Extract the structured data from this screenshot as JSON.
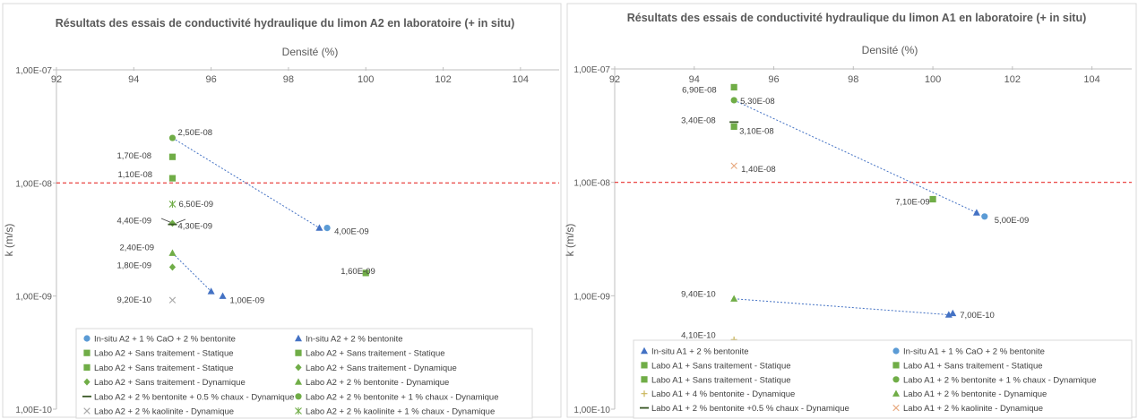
{
  "chart_data": [
    {
      "type": "scatter",
      "title": "Résultats des essais de conductivité hydraulique du limon A2 en laboratoire (+ in situ)",
      "xlabel": "Densité (%)",
      "ylabel": "k (m/s)",
      "xlim": [
        92,
        105
      ],
      "xticks": [
        "92",
        "94",
        "96",
        "98",
        "100",
        "102",
        "104"
      ],
      "ylim": [
        1e-10,
        1e-07
      ],
      "yscale": "log",
      "yticks": [
        "1,00E-07",
        "1,00E-08",
        "1,00E-09",
        "1,00E-10"
      ],
      "threshold": 1e-08,
      "legend_position": "bottom",
      "series": [
        {
          "name": "In-situ A2 + 1 % CaO + 2 % bentonite",
          "marker": "circle",
          "color": "#5b9bd5",
          "points": [
            {
              "x": 99.0,
              "y": 4e-09,
              "label": "4,00E-09"
            }
          ]
        },
        {
          "name": "In-situ A2 + 2 % bentonite",
          "marker": "triangle",
          "color": "#4472c4",
          "points": [
            {
              "x": 98.8,
              "y": 4e-09,
              "label": ""
            },
            {
              "x": 96.0,
              "y": 1.1e-09,
              "label": ""
            },
            {
              "x": 96.3,
              "y": 1e-09,
              "label": "1,00E-09"
            }
          ]
        },
        {
          "name": "Labo A2 + Sans traitement - Statique",
          "marker": "square",
          "color": "#70ad47",
          "points": [
            {
              "x": 100.0,
              "y": 1.6e-09,
              "label": "1,60E-09"
            }
          ]
        },
        {
          "name": "Labo A2 + Sans traitement - Statique",
          "marker": "square",
          "color": "#70ad47",
          "points": [
            {
              "x": 95.0,
              "y": 1.7e-08,
              "label": "1,70E-08"
            }
          ]
        },
        {
          "name": "Labo A2 + Sans traitement - Statique",
          "marker": "square",
          "color": "#70ad47",
          "points": [
            {
              "x": 95.0,
              "y": 1.1e-08,
              "label": "1,10E-08"
            }
          ]
        },
        {
          "name": "Labo A2 + Sans traitement - Dynamique",
          "marker": "diamond",
          "color": "#70ad47",
          "points": [
            {
              "x": 95.0,
              "y": 4.4e-09,
              "label": "4,40E-09"
            }
          ]
        },
        {
          "name": "Labo A2 + Sans traitement - Dynamique",
          "marker": "diamond",
          "color": "#70ad47",
          "points": [
            {
              "x": 95.0,
              "y": 1.8e-09,
              "label": "1,80E-09"
            }
          ]
        },
        {
          "name": "Labo A2 + 2 % bentonite - Dynamique",
          "marker": "triangle",
          "color": "#70ad47",
          "points": [
            {
              "x": 95.0,
              "y": 2.4e-09,
              "label": "2,40E-09"
            }
          ]
        },
        {
          "name": "Labo A2 + 2 % bentonite + 0.5 % chaux  - Dynamique",
          "marker": "dash",
          "color": "#375623",
          "points": [
            {
              "x": 95.0,
              "y": 4.3e-09,
              "label": "4,30E-09"
            }
          ]
        },
        {
          "name": "Labo A2 + 2 % bentonite + 1 % chaux  - Dynamique",
          "marker": "circle",
          "color": "#70ad47",
          "points": [
            {
              "x": 95.0,
              "y": 2.5e-08,
              "label": "2,50E-08"
            }
          ]
        },
        {
          "name": "Labo A2 + 2 % kaolinite - Dynamique",
          "marker": "x",
          "color": "#a9a9a9",
          "points": [
            {
              "x": 95.0,
              "y": 9.2e-10,
              "label": "9,20E-10"
            }
          ]
        },
        {
          "name": "Labo A2 + 2 % kaolinite + 1 % chaux - Dynamique",
          "marker": "xstar",
          "color": "#70ad47",
          "points": [
            {
              "x": 95.0,
              "y": 6.5e-09,
              "label": "6,50E-09"
            }
          ]
        }
      ],
      "trendlines": [
        {
          "from": {
            "x": 95.0,
            "y": 2.5e-08
          },
          "to": {
            "x": 98.8,
            "y": 4e-09
          }
        },
        {
          "from": {
            "x": 95.0,
            "y": 2.4e-09
          },
          "to": {
            "x": 96.0,
            "y": 1.1e-09
          }
        }
      ]
    },
    {
      "type": "scatter",
      "title": "Résultats des essais de conductivité hydraulique du limon A1 en laboratoire (+ in situ)",
      "xlabel": "Densité (%)",
      "ylabel": "k (m/s)",
      "xlim": [
        92,
        105
      ],
      "xticks": [
        "92",
        "94",
        "96",
        "98",
        "100",
        "102",
        "104"
      ],
      "ylim": [
        1e-10,
        1e-07
      ],
      "yscale": "log",
      "yticks": [
        "1,00E-07",
        "1,00E-08",
        "1,00E-09",
        "1,00E-10"
      ],
      "threshold": 1e-08,
      "legend_position": "bottom",
      "series": [
        {
          "name": "In-situ A1 + 2 % bentonite",
          "marker": "triangle",
          "color": "#4472c4",
          "points": [
            {
              "x": 101.1,
              "y": 5.4e-09,
              "label": ""
            },
            {
              "x": 100.4,
              "y": 6.8e-10,
              "label": ""
            },
            {
              "x": 100.5,
              "y": 7e-10,
              "label": "7,00E-10"
            }
          ]
        },
        {
          "name": "In-situ A1 + 1 % CaO + 2 % bentonite",
          "marker": "circle",
          "color": "#5b9bd5",
          "points": [
            {
              "x": 101.3,
              "y": 5e-09,
              "label": "5,00E-09"
            }
          ]
        },
        {
          "name": "Labo A1 + Sans traitement - Statique",
          "marker": "square",
          "color": "#70ad47",
          "points": [
            {
              "x": 95.0,
              "y": 6.9e-08,
              "label": "6,90E-08"
            }
          ]
        },
        {
          "name": "Labo A1 + Sans traitement - Statique",
          "marker": "square",
          "color": "#70ad47",
          "points": [
            {
              "x": 95.0,
              "y": 3.1e-08,
              "label": "3,10E-08"
            }
          ]
        },
        {
          "name": "Labo A1 + Sans traitement - Statique",
          "marker": "square",
          "color": "#70ad47",
          "points": [
            {
              "x": 100.0,
              "y": 7.1e-09,
              "label": "7,10E-09"
            }
          ]
        },
        {
          "name": "Labo A1 + 2 % bentonite - Dynamique",
          "marker": "triangle",
          "color": "#70ad47",
          "points": [
            {
              "x": 95.0,
              "y": 9.4e-10,
              "label": "9,40E-10"
            }
          ]
        },
        {
          "name": "Labo A1 + 4 % bentonite - Dynamique",
          "marker": "plus",
          "color": "#c9b458",
          "points": [
            {
              "x": 95.0,
              "y": 4.1e-10,
              "label": "4,10E-10"
            }
          ]
        },
        {
          "name": "Labo A1 + 2 % bentonite + 1 % chaux  - Dynamique",
          "marker": "circle",
          "color": "#70ad47",
          "points": [
            {
              "x": 95.0,
              "y": 5.3e-08,
              "label": "5,30E-08"
            }
          ]
        },
        {
          "name": "Labo A1 + 2 % bentonite +0.5 % chaux  - Dynamique",
          "marker": "dash",
          "color": "#375623",
          "points": [
            {
              "x": 95.0,
              "y": 3.4e-08,
              "label": "3,40E-08"
            }
          ]
        },
        {
          "name": "Labo A1 + 2 % kaolinite - Dynamique",
          "marker": "x",
          "color": "#e7a77c",
          "points": [
            {
              "x": 95.0,
              "y": 1.4e-08,
              "label": "1,40E-08"
            }
          ]
        }
      ],
      "trendlines": [
        {
          "from": {
            "x": 95.0,
            "y": 5.3e-08
          },
          "to": {
            "x": 101.1,
            "y": 5.4e-09
          }
        },
        {
          "from": {
            "x": 95.0,
            "y": 9.4e-10
          },
          "to": {
            "x": 100.4,
            "y": 6.8e-10
          }
        }
      ]
    }
  ]
}
